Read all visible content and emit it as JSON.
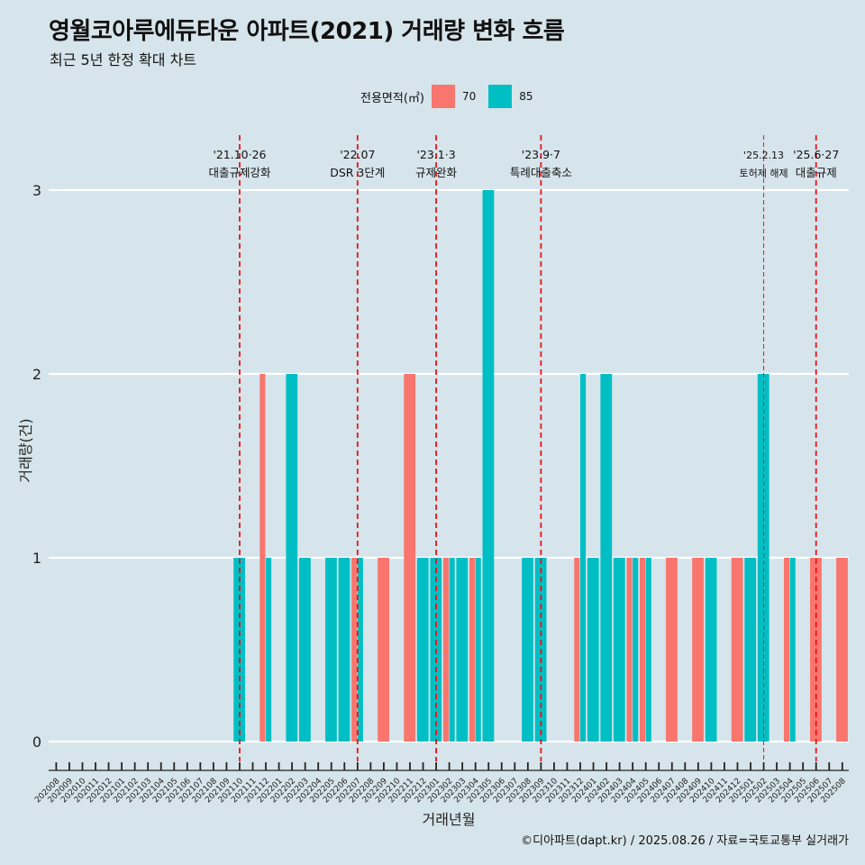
{
  "title": "영월코아루에듀타운 아파트(2021) 거래량 변화 흐름",
  "subtitle": "최근 5년 한정 확대 차트",
  "legend": {
    "title": "전용면적(㎡)",
    "items": [
      {
        "label": "70",
        "color": "#f8766d"
      },
      {
        "label": "85",
        "color": "#00bfc4"
      }
    ]
  },
  "caption": "©디아파트(dapt.kr) / 2025.08.26 / 자료=국토교통부 실거래가",
  "chart_data": {
    "type": "bar",
    "stacked": false,
    "dodged": true,
    "xlabel": "거래년월",
    "ylabel": "거래량(건)",
    "ylim": [
      0,
      3
    ],
    "yticks": [
      0,
      1,
      2,
      3
    ],
    "grid": "horizontal major lines",
    "legend_position": "top",
    "months": [
      "202008",
      "202009",
      "202010",
      "202011",
      "202012",
      "202101",
      "202102",
      "202103",
      "202104",
      "202105",
      "202106",
      "202107",
      "202108",
      "202109",
      "202110",
      "202111",
      "202112",
      "202201",
      "202202",
      "202203",
      "202204",
      "202205",
      "202206",
      "202207",
      "202208",
      "202209",
      "202210",
      "202211",
      "202212",
      "202301",
      "202302",
      "202303",
      "202304",
      "202305",
      "202306",
      "202307",
      "202308",
      "202309",
      "202310",
      "202311",
      "202312",
      "202401",
      "202402",
      "202403",
      "202404",
      "202405",
      "202406",
      "202407",
      "202408",
      "202409",
      "202410",
      "202411",
      "202412",
      "202501",
      "202502",
      "202503",
      "202504",
      "202505",
      "202506",
      "202507",
      "202508"
    ],
    "series": [
      {
        "name": "70",
        "color": "#f8766d",
        "points": [
          {
            "x": "202112",
            "y": 2
          },
          {
            "x": "202207",
            "y": 1
          },
          {
            "x": "202209",
            "y": 1
          },
          {
            "x": "202211",
            "y": 2
          },
          {
            "x": "202302",
            "y": 1
          },
          {
            "x": "202304",
            "y": 1
          },
          {
            "x": "202312",
            "y": 1
          },
          {
            "x": "202404",
            "y": 1
          },
          {
            "x": "202405",
            "y": 1
          },
          {
            "x": "202407",
            "y": 1
          },
          {
            "x": "202409",
            "y": 1
          },
          {
            "x": "202412",
            "y": 1
          },
          {
            "x": "202504",
            "y": 1
          },
          {
            "x": "202506",
            "y": 1
          },
          {
            "x": "202508",
            "y": 1
          }
        ]
      },
      {
        "name": "85",
        "color": "#00bfc4",
        "points": [
          {
            "x": "202110",
            "y": 1
          },
          {
            "x": "202112",
            "y": 1
          },
          {
            "x": "202202",
            "y": 2
          },
          {
            "x": "202203",
            "y": 1
          },
          {
            "x": "202205",
            "y": 1
          },
          {
            "x": "202206",
            "y": 1
          },
          {
            "x": "202207",
            "y": 1
          },
          {
            "x": "202212",
            "y": 1
          },
          {
            "x": "202301",
            "y": 1
          },
          {
            "x": "202302",
            "y": 1
          },
          {
            "x": "202303",
            "y": 1
          },
          {
            "x": "202304",
            "y": 1
          },
          {
            "x": "202305",
            "y": 3
          },
          {
            "x": "202308",
            "y": 1
          },
          {
            "x": "202309",
            "y": 1
          },
          {
            "x": "202312",
            "y": 2
          },
          {
            "x": "202401",
            "y": 1
          },
          {
            "x": "202402",
            "y": 2
          },
          {
            "x": "202403",
            "y": 1
          },
          {
            "x": "202404",
            "y": 1
          },
          {
            "x": "202405",
            "y": 1
          },
          {
            "x": "202410",
            "y": 1
          },
          {
            "x": "202501",
            "y": 1
          },
          {
            "x": "202502",
            "y": 2
          },
          {
            "x": "202504",
            "y": 1
          }
        ]
      }
    ],
    "annotations": [
      {
        "x": "202110",
        "date_label": "'21.10·26",
        "text": "대출규제강화",
        "line_style": "dashed-thick"
      },
      {
        "x": "202207",
        "date_label": "'22.07",
        "text": "DSR 3단계",
        "line_style": "dashed-thick"
      },
      {
        "x": "202301",
        "date_label": "'23.1·3",
        "text": "규제완화",
        "line_style": "dashed-thick"
      },
      {
        "x": "202309",
        "date_label": "'23.9·7",
        "text": "특례대출축소",
        "line_style": "dashed-thick"
      },
      {
        "x": "202502",
        "date_label": "'25.2.13",
        "text": "토허제 해제",
        "line_style": "dashed-thin"
      },
      {
        "x": "202506",
        "date_label": "'25.6·27",
        "text": "대출규제",
        "line_style": "dashed-thick"
      }
    ]
  }
}
